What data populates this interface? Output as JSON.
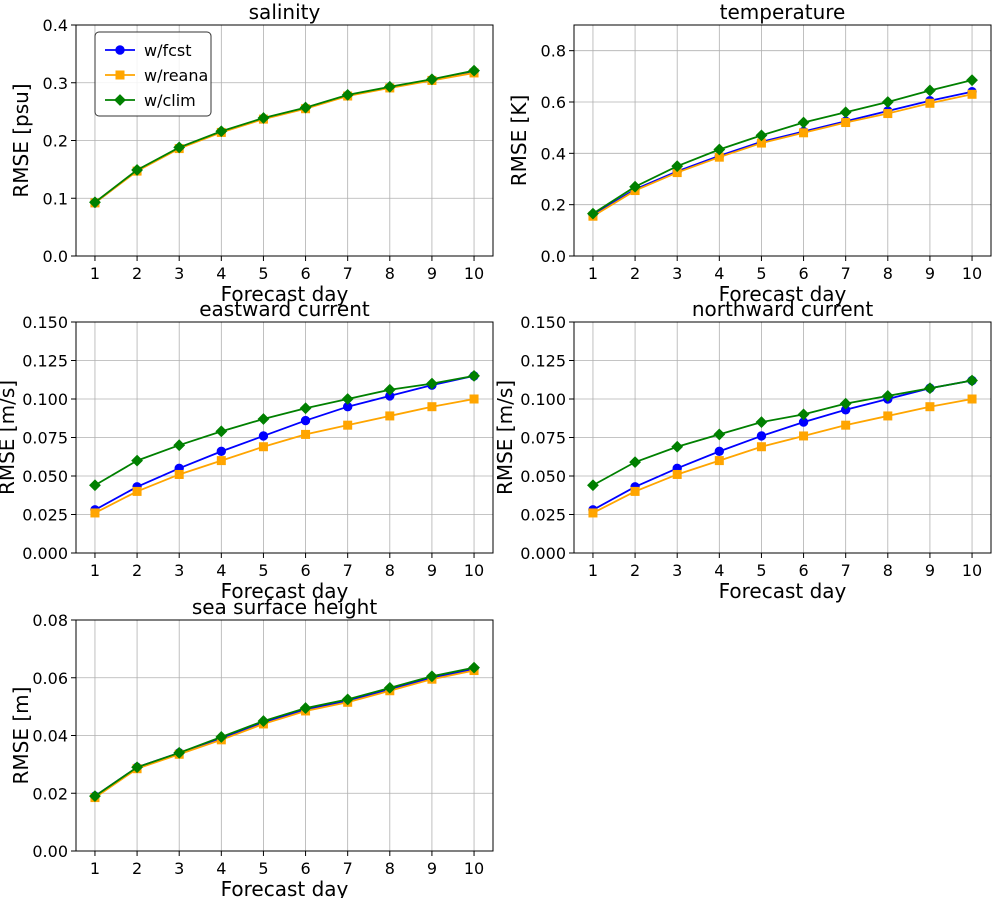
{
  "colors": {
    "fcst": "#0000ff",
    "reana": "#ffa500",
    "clim": "#008000"
  },
  "legend": [
    {
      "key": "fcst",
      "label": "w/fcst",
      "marker": "circle"
    },
    {
      "key": "reana",
      "label": "w/reana",
      "marker": "square"
    },
    {
      "key": "clim",
      "label": "w/clim",
      "marker": "diamond"
    }
  ],
  "chart_data": [
    {
      "type": "line",
      "title": "salinity",
      "xlabel": "Forecast day",
      "ylabel": "RMSE [psu]",
      "x": [
        1,
        2,
        3,
        4,
        5,
        6,
        7,
        8,
        9,
        10
      ],
      "ylim": [
        0,
        0.4
      ],
      "yticks": [
        0.0,
        0.1,
        0.2,
        0.3,
        0.4
      ],
      "ytick_labels": [
        "0.0",
        "0.1",
        "0.2",
        "0.3",
        "0.4"
      ],
      "legend": true,
      "series": [
        {
          "name": "w/fcst",
          "key": "fcst",
          "values": [
            0.092,
            0.148,
            0.187,
            0.215,
            0.238,
            0.256,
            0.278,
            0.292,
            0.305,
            0.319
          ]
        },
        {
          "name": "w/reana",
          "key": "reana",
          "values": [
            0.092,
            0.147,
            0.186,
            0.214,
            0.237,
            0.255,
            0.277,
            0.291,
            0.304,
            0.317
          ]
        },
        {
          "name": "w/clim",
          "key": "clim",
          "values": [
            0.093,
            0.149,
            0.188,
            0.216,
            0.239,
            0.257,
            0.279,
            0.293,
            0.306,
            0.321
          ]
        }
      ]
    },
    {
      "type": "line",
      "title": "temperature",
      "xlabel": "Forecast day",
      "ylabel": "RMSE [K]",
      "x": [
        1,
        2,
        3,
        4,
        5,
        6,
        7,
        8,
        9,
        10
      ],
      "ylim": [
        0,
        0.9
      ],
      "yticks": [
        0.0,
        0.2,
        0.4,
        0.6,
        0.8
      ],
      "ytick_labels": [
        "0.0",
        "0.2",
        "0.4",
        "0.6",
        "0.8"
      ],
      "legend": false,
      "series": [
        {
          "name": "w/fcst",
          "key": "fcst",
          "values": [
            0.16,
            0.26,
            0.33,
            0.39,
            0.445,
            0.485,
            0.525,
            0.565,
            0.605,
            0.64
          ]
        },
        {
          "name": "w/reana",
          "key": "reana",
          "values": [
            0.155,
            0.255,
            0.325,
            0.385,
            0.44,
            0.48,
            0.52,
            0.555,
            0.595,
            0.63
          ]
        },
        {
          "name": "w/clim",
          "key": "clim",
          "values": [
            0.165,
            0.27,
            0.35,
            0.415,
            0.47,
            0.52,
            0.56,
            0.6,
            0.645,
            0.685
          ]
        }
      ]
    },
    {
      "type": "line",
      "title": "eastward current",
      "xlabel": "Forecast day",
      "ylabel": "RMSE [m/s]",
      "x": [
        1,
        2,
        3,
        4,
        5,
        6,
        7,
        8,
        9,
        10
      ],
      "ylim": [
        0,
        0.15
      ],
      "yticks": [
        0.0,
        0.025,
        0.05,
        0.075,
        0.1,
        0.125,
        0.15
      ],
      "ytick_labels": [
        "0.000",
        "0.025",
        "0.050",
        "0.075",
        "0.100",
        "0.125",
        "0.150"
      ],
      "legend": false,
      "series": [
        {
          "name": "w/fcst",
          "key": "fcst",
          "values": [
            0.028,
            0.043,
            0.055,
            0.066,
            0.076,
            0.086,
            0.095,
            0.102,
            0.109,
            0.115
          ]
        },
        {
          "name": "w/reana",
          "key": "reana",
          "values": [
            0.026,
            0.04,
            0.051,
            0.06,
            0.069,
            0.077,
            0.083,
            0.089,
            0.095,
            0.1
          ]
        },
        {
          "name": "w/clim",
          "key": "clim",
          "values": [
            0.044,
            0.06,
            0.07,
            0.079,
            0.087,
            0.094,
            0.1,
            0.106,
            0.11,
            0.115
          ]
        }
      ]
    },
    {
      "type": "line",
      "title": "northward current",
      "xlabel": "Forecast day",
      "ylabel": "RMSE [m/s]",
      "x": [
        1,
        2,
        3,
        4,
        5,
        6,
        7,
        8,
        9,
        10
      ],
      "ylim": [
        0,
        0.15
      ],
      "yticks": [
        0.0,
        0.025,
        0.05,
        0.075,
        0.1,
        0.125,
        0.15
      ],
      "ytick_labels": [
        "0.000",
        "0.025",
        "0.050",
        "0.075",
        "0.100",
        "0.125",
        "0.150"
      ],
      "legend": false,
      "series": [
        {
          "name": "w/fcst",
          "key": "fcst",
          "values": [
            0.028,
            0.043,
            0.055,
            0.066,
            0.076,
            0.085,
            0.093,
            0.1,
            0.107,
            0.112
          ]
        },
        {
          "name": "w/reana",
          "key": "reana",
          "values": [
            0.026,
            0.04,
            0.051,
            0.06,
            0.069,
            0.076,
            0.083,
            0.089,
            0.095,
            0.1
          ]
        },
        {
          "name": "w/clim",
          "key": "clim",
          "values": [
            0.044,
            0.059,
            0.069,
            0.077,
            0.085,
            0.09,
            0.097,
            0.102,
            0.107,
            0.112
          ]
        }
      ]
    },
    {
      "type": "line",
      "title": "sea surface height",
      "xlabel": "Forecast day",
      "ylabel": "RMSE [m]",
      "x": [
        1,
        2,
        3,
        4,
        5,
        6,
        7,
        8,
        9,
        10
      ],
      "ylim": [
        0,
        0.08
      ],
      "yticks": [
        0.0,
        0.02,
        0.04,
        0.06,
        0.08
      ],
      "ytick_labels": [
        "0.00",
        "0.02",
        "0.04",
        "0.06",
        "0.08"
      ],
      "legend": false,
      "series": [
        {
          "name": "w/fcst",
          "key": "fcst",
          "values": [
            0.019,
            0.029,
            0.034,
            0.039,
            0.0445,
            0.049,
            0.052,
            0.056,
            0.06,
            0.063
          ]
        },
        {
          "name": "w/reana",
          "key": "reana",
          "values": [
            0.0185,
            0.0285,
            0.0335,
            0.0385,
            0.044,
            0.0485,
            0.0515,
            0.0555,
            0.0595,
            0.0625
          ]
        },
        {
          "name": "w/clim",
          "key": "clim",
          "values": [
            0.019,
            0.029,
            0.034,
            0.0395,
            0.045,
            0.0495,
            0.0525,
            0.0565,
            0.0605,
            0.0635
          ]
        }
      ]
    }
  ]
}
